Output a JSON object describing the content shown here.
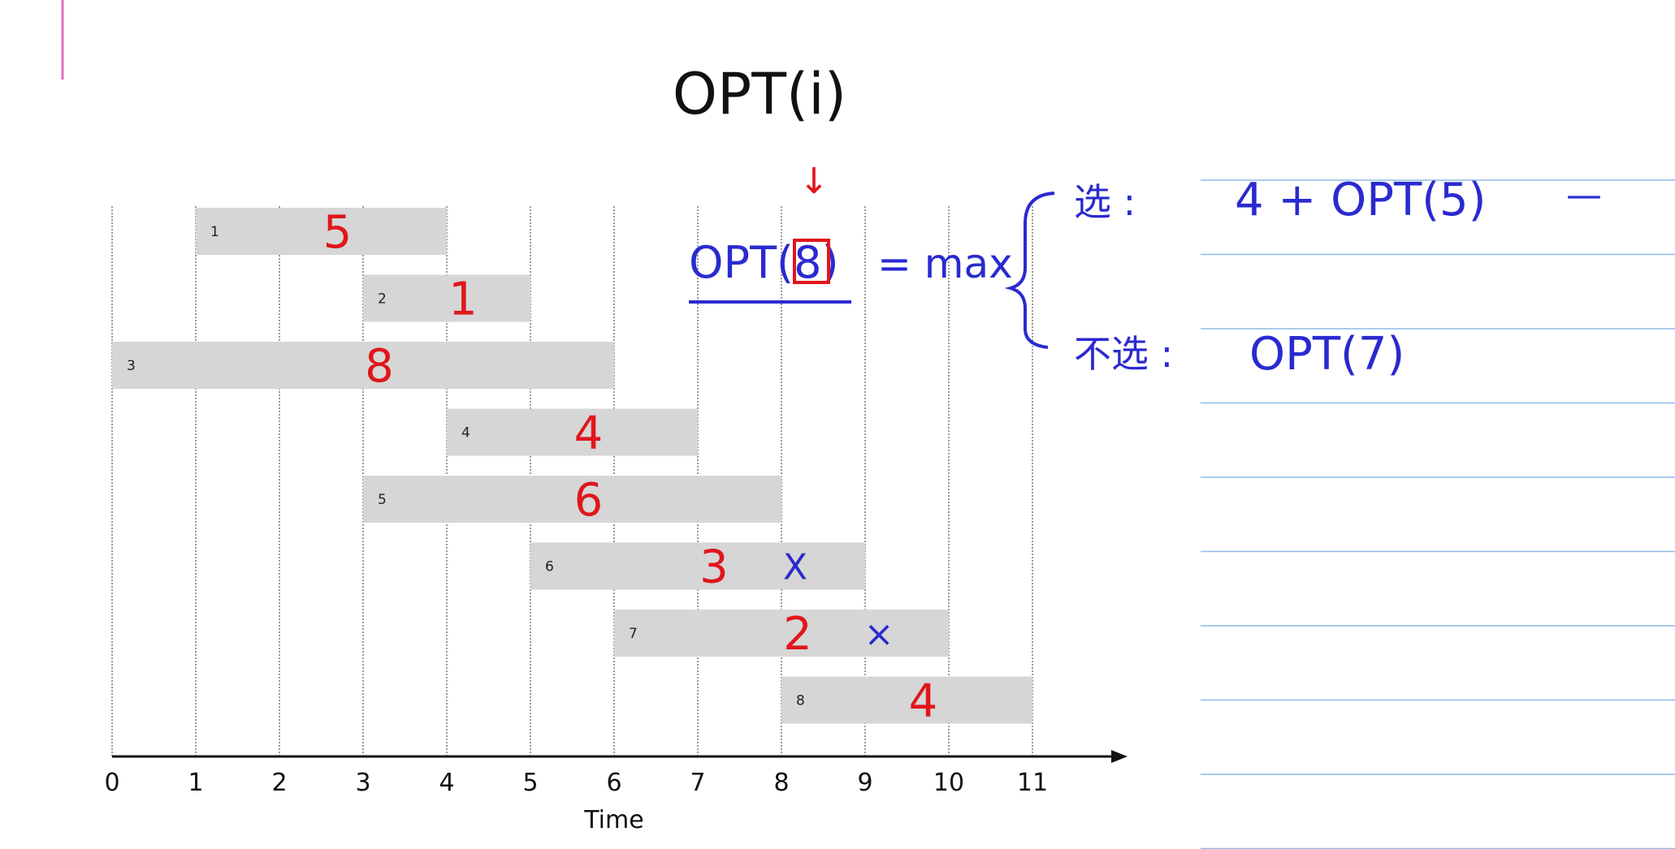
{
  "title": "OPT(i)",
  "chart_data": {
    "type": "gantt",
    "xlabel": "Time",
    "xlim": [
      0,
      11
    ],
    "x_ticks": [
      "0",
      "1",
      "2",
      "3",
      "4",
      "5",
      "6",
      "7",
      "8",
      "9",
      "10",
      "11"
    ],
    "jobs": [
      {
        "id": "1",
        "start": 1,
        "end": 4,
        "weight": "5"
      },
      {
        "id": "2",
        "start": 3,
        "end": 5,
        "weight": "1"
      },
      {
        "id": "3",
        "start": 0,
        "end": 6,
        "weight": "8"
      },
      {
        "id": "4",
        "start": 4,
        "end": 7,
        "weight": "4"
      },
      {
        "id": "5",
        "start": 3,
        "end": 8,
        "weight": "6"
      },
      {
        "id": "6",
        "start": 5,
        "end": 9,
        "weight": "3",
        "mark": "X"
      },
      {
        "id": "7",
        "start": 6,
        "end": 10,
        "weight": "2",
        "mark": "×"
      },
      {
        "id": "8",
        "start": 8,
        "end": 11,
        "weight": "4"
      }
    ],
    "colors": {
      "bar": "#d6d6d6",
      "weight": "#e0161c",
      "annotation": "#2a2ad0",
      "arrow": "#e0161c"
    }
  },
  "formula": {
    "lhs": "OPT(8)",
    "lhs_prefix": "OPT(",
    "lhs_index": "8",
    "lhs_suffix": ")",
    "arrow": "↓",
    "eq": "= max",
    "choose_label": "选 :",
    "choose_expr": "4 + OPT(5)",
    "choose_tail": "—",
    "skip_label": "不选 :",
    "skip_expr": "OPT(7)"
  }
}
